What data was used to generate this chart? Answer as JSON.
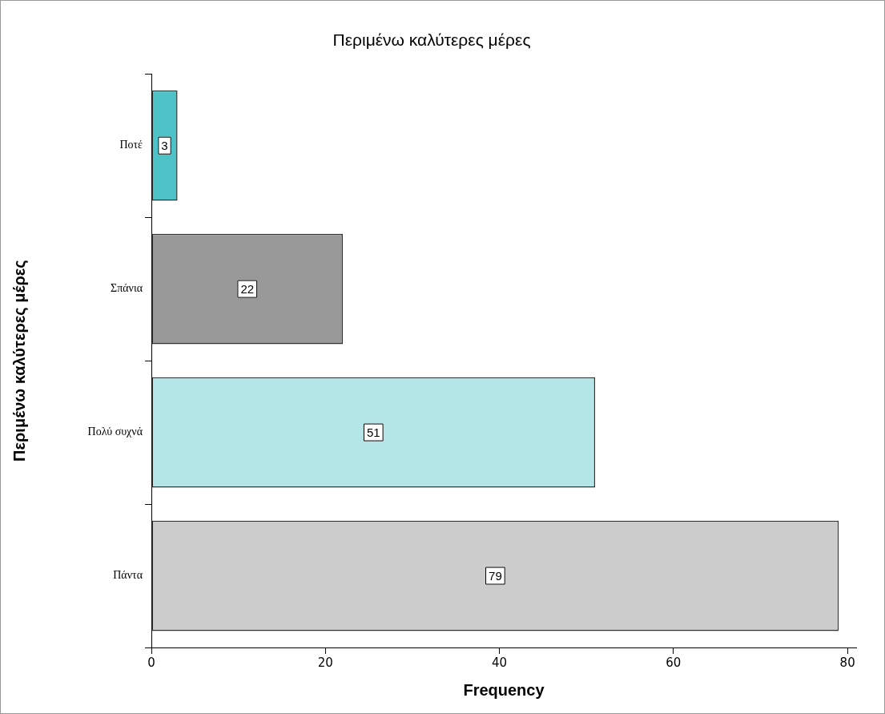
{
  "chart_data": {
    "type": "bar",
    "orientation": "horizontal",
    "title": "Περιμένω καλύτερες μέρες",
    "xlabel": "Frequency",
    "ylabel": "Περιμένω καλύτερες μέρες",
    "categories": [
      "Ποτέ",
      "Σπάνια",
      "Πολύ συχνά",
      "Πάντα"
    ],
    "values": [
      3,
      22,
      51,
      79
    ],
    "colors": [
      "#4dc3c7",
      "#999999",
      "#b4e6e8",
      "#cccccc"
    ],
    "xlim": [
      0,
      81
    ],
    "xticks": [
      0,
      20,
      40,
      60,
      80
    ],
    "grid": false,
    "legend": false,
    "data_labels": true
  }
}
